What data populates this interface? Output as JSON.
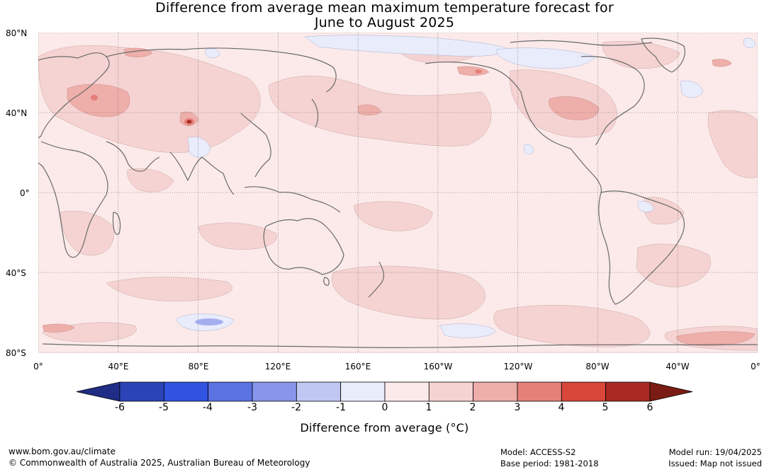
{
  "title": {
    "line1": "Difference from average mean maximum temperature forecast for",
    "line2": "June to August 2025"
  },
  "map": {
    "lat_labels": [
      "80°N",
      "40°N",
      "0°",
      "40°S",
      "80°S"
    ],
    "lon_labels": [
      "0°",
      "40°E",
      "80°E",
      "120°E",
      "160°E",
      "160°W",
      "120°W",
      "80°W",
      "40°W",
      "0°"
    ],
    "base_color": "#fbeae9",
    "coast_color": "#6b6b6b"
  },
  "colorbar": {
    "ticks": [
      "-6",
      "-5",
      "-4",
      "-3",
      "-2",
      "-1",
      "0",
      "1",
      "2",
      "3",
      "4",
      "5",
      "6"
    ],
    "colors": [
      "#1f2d86",
      "#2a44b8",
      "#3153e1",
      "#5a72e2",
      "#8796ea",
      "#bfc7f2",
      "#e9ecfb",
      "#fbeae9",
      "#f5d3d2",
      "#eeaeaa",
      "#e58079",
      "#d9463a",
      "#a82a22",
      "#7a1c15"
    ],
    "caption": "Difference from average (°C)"
  },
  "footer": {
    "url": "www.bom.gov.au/climate",
    "copyright": "© Commonwealth of Australia 2025, Australian Bureau of Meteorology",
    "model": "Model: ACCESS-S2",
    "base_period": "Base period: 1981-2018",
    "model_run": "Model run: 19/04/2025",
    "issued": "Issued: Map not issued"
  }
}
